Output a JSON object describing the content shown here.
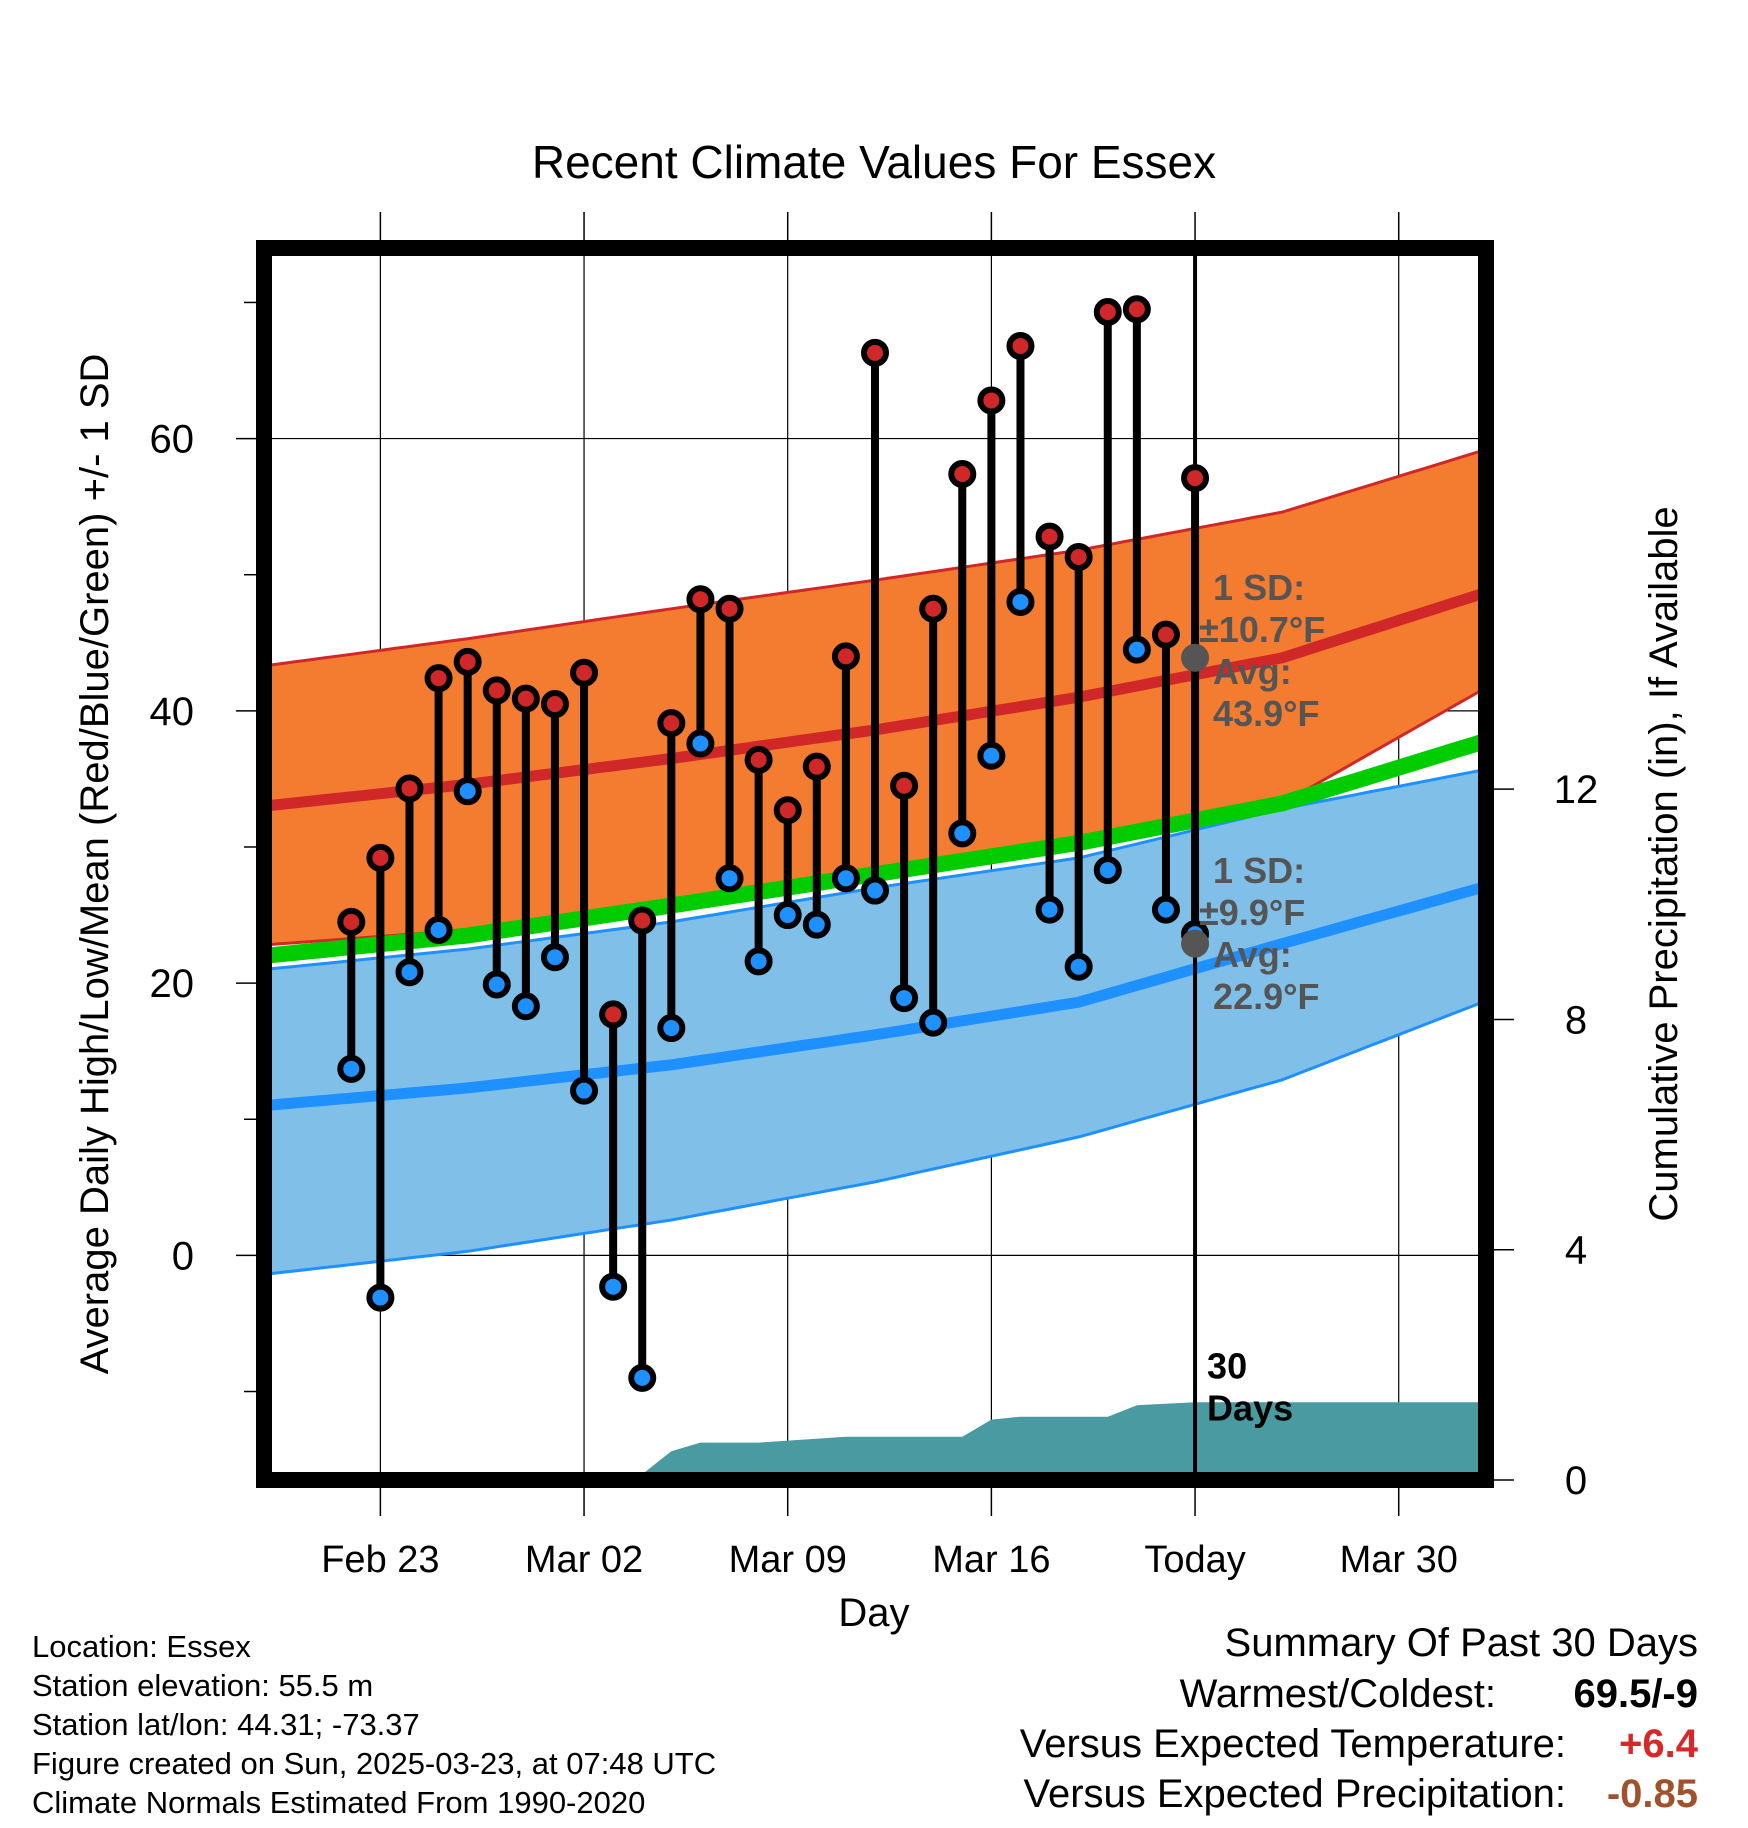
{
  "chart_data": {
    "type": "line",
    "title": "Recent Climate Values For Essex",
    "xlabel": "Day",
    "ylabel": "Average Daily High/Low/Mean (Red/Blue/Green) +/- 1 SD",
    "y2label": "Cumulative Precipitation (in), If Available",
    "x_tick_labels": [
      "Feb 23",
      "Mar 02",
      "Mar 09",
      "Mar 16",
      "Today",
      "Mar 30"
    ],
    "x_tick_dates": [
      "2025-02-23",
      "2025-03-02",
      "2025-03-09",
      "2025-03-16",
      "2025-03-23",
      "2025-03-30"
    ],
    "x_range": [
      "2025-02-19",
      "2025-04-02"
    ],
    "y_ticks": [
      0,
      20,
      40,
      60
    ],
    "ylim": [
      -16.5,
      74
    ],
    "y2_ticks": [
      0,
      4,
      8,
      12
    ],
    "y2lim": [
      0,
      21.4
    ],
    "grid": true,
    "today": "2025-03-23",
    "colors": {
      "high": "#d02828",
      "low": "#1e90ff",
      "mean": "#00cc00",
      "high_band": "#f47c30",
      "low_band": "#80c0e8",
      "precip": "#4a9ba1",
      "marker_today": "#555555",
      "temp_anomaly": "#d62828",
      "precip_anomaly": "#a0522d"
    },
    "observations": [
      {
        "date": "2025-02-22",
        "high": 24.5,
        "low": 13.7
      },
      {
        "date": "2025-02-23",
        "high": 29.2,
        "low": -3.1
      },
      {
        "date": "2025-02-24",
        "high": 34.3,
        "low": 20.8
      },
      {
        "date": "2025-02-25",
        "high": 42.4,
        "low": 23.9
      },
      {
        "date": "2025-02-26",
        "high": 43.6,
        "low": 34.1
      },
      {
        "date": "2025-02-27",
        "high": 41.5,
        "low": 19.9
      },
      {
        "date": "2025-02-28",
        "high": 40.9,
        "low": 18.3
      },
      {
        "date": "2025-03-01",
        "high": 40.5,
        "low": 21.9
      },
      {
        "date": "2025-03-02",
        "high": 42.8,
        "low": 12.1
      },
      {
        "date": "2025-03-03",
        "high": 17.7,
        "low": -2.3
      },
      {
        "date": "2025-03-04",
        "high": 24.6,
        "low": -9.0
      },
      {
        "date": "2025-03-05",
        "high": 39.1,
        "low": 16.7
      },
      {
        "date": "2025-03-06",
        "high": 48.2,
        "low": 37.6
      },
      {
        "date": "2025-03-07",
        "high": 47.5,
        "low": 27.7
      },
      {
        "date": "2025-03-08",
        "high": 36.4,
        "low": 21.6
      },
      {
        "date": "2025-03-09",
        "high": 32.7,
        "low": 25.0
      },
      {
        "date": "2025-03-10",
        "high": 35.9,
        "low": 24.3
      },
      {
        "date": "2025-03-11",
        "high": 44.0,
        "low": 27.7
      },
      {
        "date": "2025-03-12",
        "high": 66.3,
        "low": 26.8
      },
      {
        "date": "2025-03-13",
        "high": 34.5,
        "low": 18.9
      },
      {
        "date": "2025-03-14",
        "high": 47.5,
        "low": 17.1
      },
      {
        "date": "2025-03-15",
        "high": 57.4,
        "low": 31.0
      },
      {
        "date": "2025-03-16",
        "high": 62.8,
        "low": 36.7
      },
      {
        "date": "2025-03-17",
        "high": 66.8,
        "low": 48.0
      },
      {
        "date": "2025-03-18",
        "high": 52.8,
        "low": 25.4
      },
      {
        "date": "2025-03-19",
        "high": 51.3,
        "low": 21.2
      },
      {
        "date": "2025-03-20",
        "high": 69.3,
        "low": 28.3
      },
      {
        "date": "2025-03-21",
        "high": 69.5,
        "low": 44.5
      },
      {
        "date": "2025-03-22",
        "high": 45.6,
        "low": 25.4
      },
      {
        "date": "2025-03-23",
        "high": 57.1,
        "low": 23.6
      }
    ],
    "normals": {
      "dates": [
        "2025-02-19",
        "2025-02-26",
        "2025-03-05",
        "2025-03-12",
        "2025-03-19",
        "2025-03-26",
        "2025-04-02"
      ],
      "high_avg": [
        33.0,
        34.6,
        36.5,
        38.6,
        41.0,
        43.9,
        48.7
      ],
      "high_upper": [
        43.3,
        45.3,
        47.5,
        49.6,
        51.8,
        54.6,
        59.2
      ],
      "high_lower": [
        22.8,
        23.9,
        25.6,
        27.6,
        30.3,
        33.2,
        41.7
      ],
      "low_avg": [
        11.0,
        12.3,
        14.0,
        16.2,
        18.6,
        22.9,
        27.1
      ],
      "low_upper": [
        21.0,
        22.5,
        24.5,
        27.0,
        29.2,
        32.8,
        35.7
      ],
      "low_lower": [
        -1.4,
        0.3,
        2.6,
        5.4,
        8.7,
        12.9,
        18.7
      ],
      "mean_avg": [
        22.0,
        23.5,
        25.7,
        28.0,
        30.3,
        33.2,
        37.8
      ]
    },
    "today_markers": {
      "high": {
        "sd_label": "1 SD:",
        "sd_value": "±10.7°F",
        "avg_label": "Avg:",
        "avg_value": "43.9°F",
        "avg": 43.9
      },
      "low": {
        "sd_label": "1 SD:",
        "sd_value": "±9.9°F",
        "avg_label": "Avg:",
        "avg_value": "22.9°F",
        "avg": 22.9
      }
    },
    "precipitation": {
      "dates": [
        "2025-02-19",
        "2025-02-26",
        "2025-03-01",
        "2025-03-02",
        "2025-03-04",
        "2025-03-05",
        "2025-03-06",
        "2025-03-08",
        "2025-03-11",
        "2025-03-15",
        "2025-03-16",
        "2025-03-17",
        "2025-03-20",
        "2025-03-21",
        "2025-03-23",
        "2025-04-02"
      ],
      "cumulative": [
        0.0,
        0.0,
        0.05,
        0.1,
        0.1,
        0.5,
        0.65,
        0.65,
        0.75,
        0.75,
        1.05,
        1.1,
        1.1,
        1.3,
        1.35,
        1.35
      ],
      "label": "30 Days"
    }
  },
  "footer": {
    "location": "Location: Essex",
    "elevation": "Station elevation: 55.5 m",
    "latlon": "Station lat/lon: 44.31; -73.37",
    "created": "Figure created on Sun, 2025-03-23, at 07:48 UTC",
    "normals": "Climate Normals Estimated From 1990-2020"
  },
  "summary": {
    "title": "Summary Of Past 30 Days",
    "warmest_coldest_label": "Warmest/Coldest:",
    "warmest_coldest_value": "69.5/-9",
    "temp_label": "Versus Expected Temperature:",
    "temp_value": "+6.4",
    "precip_label": "Versus Expected Precipitation:",
    "precip_value": "-0.85"
  }
}
